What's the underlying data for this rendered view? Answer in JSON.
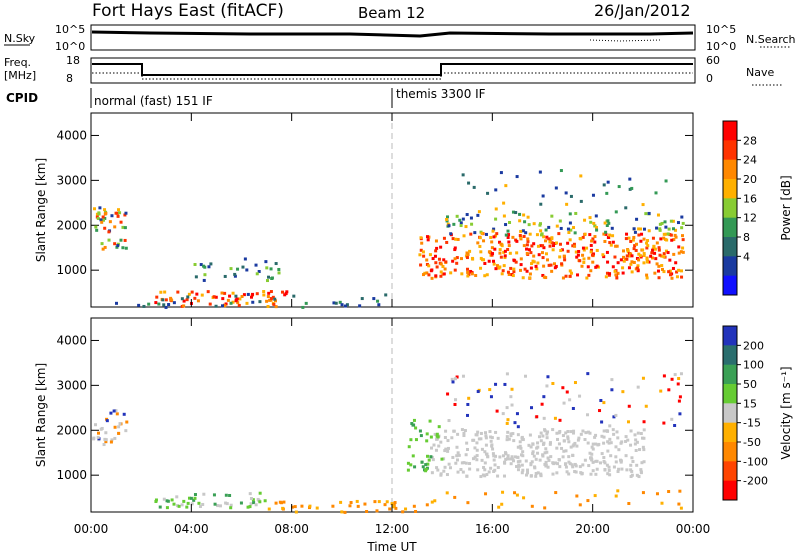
{
  "header": {
    "station": "Fort Hays East (fitACF)",
    "beam": "Beam 12",
    "date": "26/Jan/2012"
  },
  "noise_panel": {
    "left_label": "N.Sky",
    "left_ticks": [
      "10^5",
      "10^0"
    ],
    "right_ticks": [
      "10^5",
      "10^0"
    ],
    "right_label": "N.Search"
  },
  "freq_panel": {
    "left_label_1": "Freq.",
    "left_label_2": "[MHz]",
    "left_ticks": [
      "18",
      "8"
    ],
    "right_ticks": [
      "60",
      "0"
    ],
    "right_label": "Nave"
  },
  "cpid": {
    "label": "CPID",
    "modes": [
      {
        "label": "normal (fast) 151 IF",
        "start_hour": 0
      },
      {
        "label": "themis 3300 IF",
        "start_hour": 12
      }
    ]
  },
  "chart_data": [
    {
      "type": "heatmap",
      "name": "power",
      "ylabel": "Slant Range [km]",
      "xlabel": "",
      "yticks": [
        "4000",
        "3000",
        "2000",
        "1000"
      ],
      "ylim": [
        180,
        4500
      ],
      "colorbar_label": "Power [dB]",
      "colorbar_ticks": [
        "28",
        "24",
        "20",
        "16",
        "12",
        "8",
        "4"
      ],
      "colorbar_colors": [
        "#ff0000",
        "#ff3300",
        "#ff8800",
        "#ffb000",
        "#88cc33",
        "#339955",
        "#2a6a6a",
        "#1a3aa0",
        "#1010ff"
      ],
      "regions": [
        {
          "t0": 0.0,
          "t1": 1.5,
          "r0": 1500,
          "r1": 2400,
          "level": "mixed"
        },
        {
          "t0": 2.5,
          "t1": 8.0,
          "r0": 200,
          "r1": 600,
          "level": "high"
        },
        {
          "t0": 4.0,
          "t1": 8.0,
          "r0": 800,
          "r1": 1300,
          "level": "mid"
        },
        {
          "t0": 13.0,
          "t1": 23.5,
          "r0": 800,
          "r1": 1800,
          "level": "high"
        },
        {
          "t0": 14.0,
          "t1": 23.5,
          "r0": 1800,
          "r1": 2300,
          "level": "mid"
        }
      ]
    },
    {
      "type": "heatmap",
      "name": "velocity",
      "ylabel": "Slant Range [km]",
      "xlabel": "Time UT",
      "yticks": [
        "4000",
        "3000",
        "2000",
        "1000"
      ],
      "ylim": [
        180,
        4500
      ],
      "xlim": [
        0,
        24
      ],
      "xticks": [
        "00:00",
        "04:00",
        "08:00",
        "12:00",
        "16:00",
        "20:00",
        "00:00"
      ],
      "colorbar_label": "Velocity [m s⁻¹]",
      "colorbar_ticks": [
        "200",
        "100",
        "50",
        "15",
        "-15",
        "-50",
        "-100",
        "-200"
      ],
      "colorbar_colors": [
        "#2233bb",
        "#2a6e6e",
        "#3aa055",
        "#66cc33",
        "#c8c8c8",
        "#ffb000",
        "#ff8800",
        "#ff4400",
        "#ff0000"
      ]
    }
  ]
}
